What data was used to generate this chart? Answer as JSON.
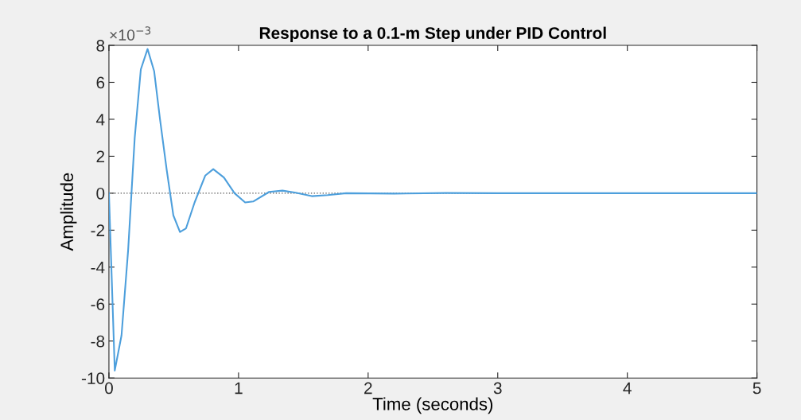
{
  "chart_data": {
    "type": "line",
    "title": "Response to a 0.1-m Step under PID Control",
    "xlabel": "Time (seconds)",
    "ylabel": "Amplitude",
    "annotations": [
      "×10$^{−3}$"
    ],
    "x": [
      0,
      0.045,
      0.097,
      0.148,
      0.199,
      0.246,
      0.298,
      0.349,
      0.394,
      0.446,
      0.497,
      0.548,
      0.595,
      0.661,
      0.743,
      0.805,
      0.887,
      0.969,
      1.051,
      1.113,
      1.236,
      1.339,
      1.441,
      1.565,
      1.688,
      1.83,
      2.2,
      2.6,
      3.0,
      4.0,
      5.0
    ],
    "series": [
      {
        "color": "#4d9fdc",
        "values": [
          0,
          -9.6,
          -7.7,
          -3.1,
          3.0,
          6.7,
          7.8,
          6.6,
          4.0,
          1.25,
          -1.2,
          -2.1,
          -1.9,
          -0.5,
          0.95,
          1.3,
          0.85,
          0,
          -0.5,
          -0.45,
          0.07,
          0.14,
          0.03,
          -0.16,
          -0.1,
          0,
          -0.02,
          0.01,
          0,
          0,
          0
        ]
      }
    ],
    "xlim": [
      0,
      5
    ],
    "xticks": [
      0,
      1,
      2,
      3,
      4,
      5
    ],
    "ylim": [
      -10,
      8
    ],
    "yticks": [
      -10,
      -8,
      -6,
      -4,
      -2,
      0,
      2,
      4,
      6,
      8
    ],
    "ref_lines": [
      {
        "axis": "y",
        "value": 0,
        "color": "#555555",
        "line_style": "dotted"
      }
    ],
    "grid": false,
    "legend": false,
    "marker": "none",
    "line_style": "solid"
  }
}
